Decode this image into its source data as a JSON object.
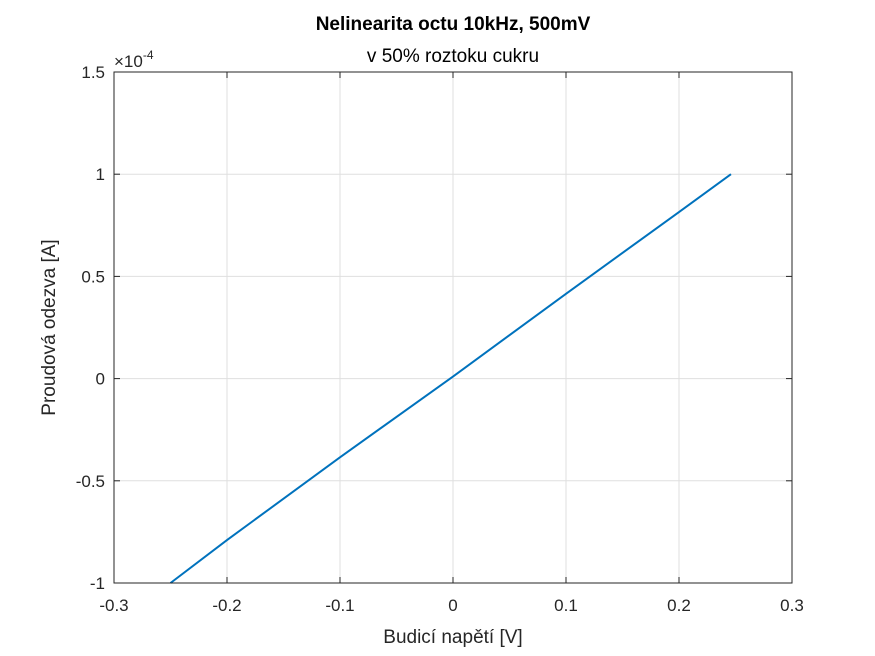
{
  "chart_data": {
    "type": "line",
    "title": "Nelinearita octu 10kHz, 500mV",
    "subtitle": "v 50% roztoku cukru",
    "xlabel": "Budicí napětí [V]",
    "ylabel": "Proudová odezva [A]",
    "y_exponent_label": "×10",
    "y_exponent_power": "-4",
    "xlim": [
      -0.3,
      0.3
    ],
    "ylim": [
      -1.0,
      1.5
    ],
    "y_scale_factor": 0.0001,
    "x_ticks": [
      -0.3,
      -0.2,
      -0.1,
      0,
      0.1,
      0.2,
      0.3
    ],
    "x_tick_labels": [
      "-0.3",
      "-0.2",
      "-0.1",
      "0",
      "0.1",
      "0.2",
      "0.3"
    ],
    "y_ticks": [
      -1.0,
      -0.5,
      0,
      0.5,
      1.0,
      1.5
    ],
    "y_tick_labels": [
      "-1",
      "-0.5",
      "0",
      "0.5",
      "1",
      "1.5"
    ],
    "grid": true,
    "series": [
      {
        "color": "#0072bd",
        "x": [
          -0.25,
          -0.2,
          -0.1,
          0,
          0.1,
          0.2,
          0.246
        ],
        "y": [
          -1.0,
          -0.79,
          -0.385,
          0.01,
          0.415,
          0.815,
          1.0
        ]
      }
    ]
  }
}
